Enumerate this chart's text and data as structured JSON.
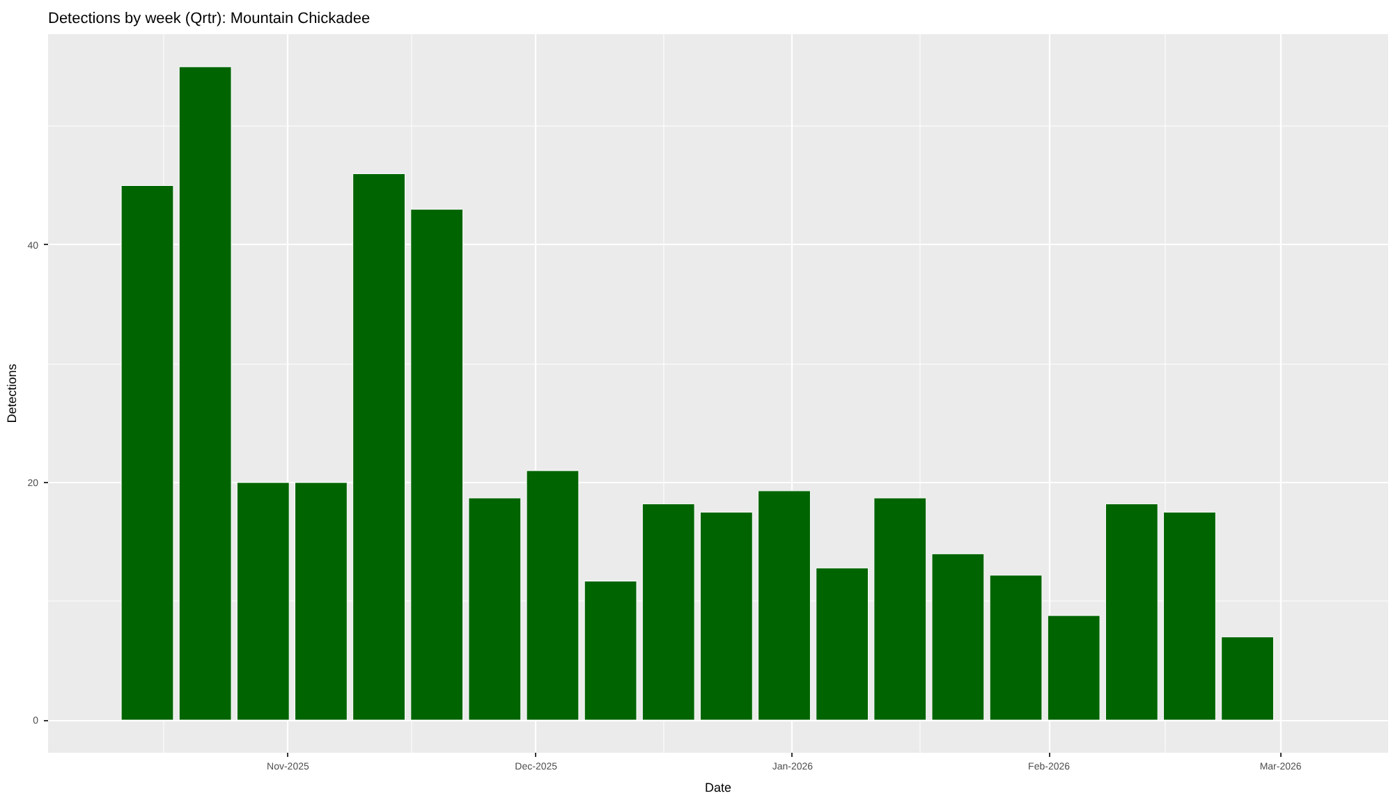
{
  "chart_data": {
    "type": "bar",
    "title": "Detections by week (Qrtr): Mountain Chickadee",
    "xlabel": "Date",
    "ylabel": "Detections",
    "x": [
      "2025-10-15",
      "2025-10-22",
      "2025-10-29",
      "2025-11-05",
      "2025-11-12",
      "2025-11-19",
      "2025-11-26",
      "2025-12-03",
      "2025-12-10",
      "2025-12-17",
      "2025-12-24",
      "2025-12-31",
      "2026-01-07",
      "2026-01-14",
      "2026-01-21",
      "2026-01-28",
      "2026-02-04",
      "2026-02-11",
      "2026-02-18",
      "2026-02-25"
    ],
    "values": [
      45,
      55,
      20,
      20,
      46,
      43,
      18.7,
      21,
      11.7,
      18.2,
      17.5,
      19.3,
      12.8,
      18.7,
      14,
      12.2,
      8.8,
      18.2,
      17.5,
      7
    ],
    "color": "#006400",
    "xlim": [
      "2025-10-03",
      "2026-03-14"
    ],
    "ylim": [
      -2.75,
      57.75
    ],
    "xticks": [
      {
        "value": "2025-11-01",
        "label": "Nov-2025"
      },
      {
        "value": "2025-12-01",
        "label": "Dec-2025"
      },
      {
        "value": "2026-01-01",
        "label": "Jan-2026"
      },
      {
        "value": "2026-02-01",
        "label": "Feb-2026"
      },
      {
        "value": "2026-03-01",
        "label": "Mar-2026"
      }
    ],
    "yticks": [
      0,
      20,
      40
    ],
    "grid": true
  }
}
